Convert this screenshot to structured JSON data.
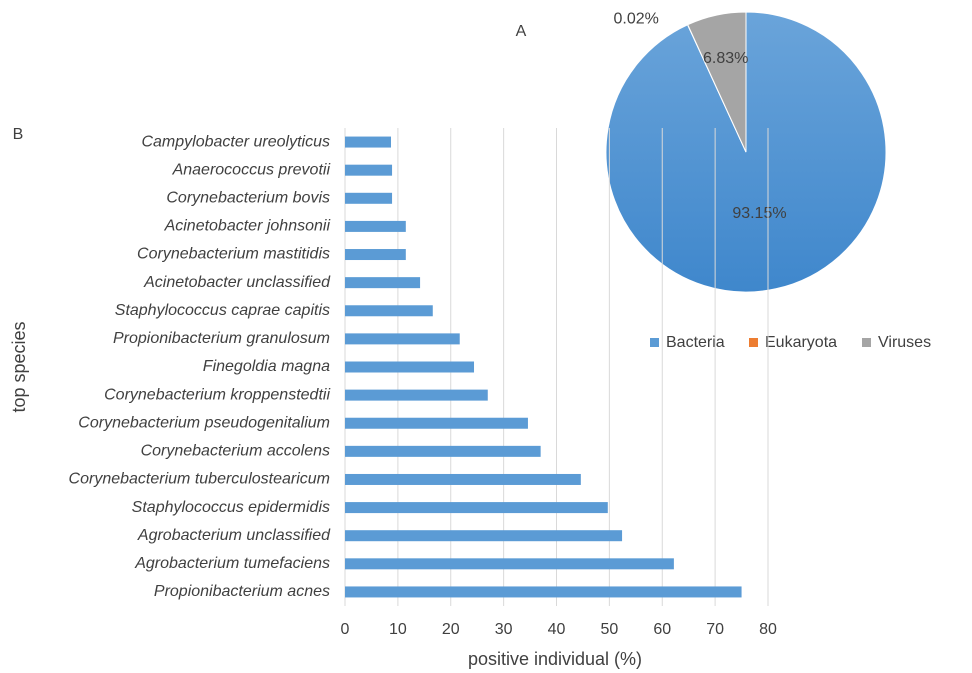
{
  "chart_data": [
    {
      "type": "pie",
      "label": "A",
      "categories": [
        "Bacteria",
        "Eukaryota",
        "Viruses"
      ],
      "values": [
        93.15,
        0.02,
        6.83
      ],
      "value_labels": [
        "93.15%",
        "0.02%",
        "6.83%"
      ],
      "colors": [
        "#5b9bd5",
        "#ed7d31",
        "#a5a5a5"
      ],
      "legend": "right"
    },
    {
      "type": "barh",
      "label": "B",
      "x_label": "positive individual (%)",
      "y_label": "top species",
      "categories": [
        "Campylobacter ureolyticus",
        "Anaerococcus prevotii",
        "Corynebacterium bovis",
        "Acinetobacter johnsonii",
        "Corynebacterium mastitidis",
        "Acinetobacter unclassified",
        "Staphylococcus caprae capitis",
        "Propionibacterium granulosum",
        "Finegoldia magna",
        "Corynebacterium kroppenstedtii",
        "Corynebacterium pseudogenitalium",
        "Corynebacterium accolens",
        "Corynebacterium tuberculostearicum",
        "Staphylococcus epidermidis",
        "Agrobacterium unclassified",
        "Agrobacterium tumefaciens",
        "Propionibacterium acnes"
      ],
      "values": [
        8.7,
        8.9,
        8.9,
        11.5,
        11.5,
        14.2,
        16.6,
        21.7,
        24.4,
        27.0,
        34.6,
        37.0,
        44.6,
        49.7,
        52.4,
        62.2,
        75.0
      ],
      "color": "#5b9bd5",
      "xlim": [
        0,
        80
      ],
      "xticks": [
        0,
        10,
        20,
        30,
        40,
        50,
        60,
        70,
        80
      ],
      "grid": true
    }
  ]
}
